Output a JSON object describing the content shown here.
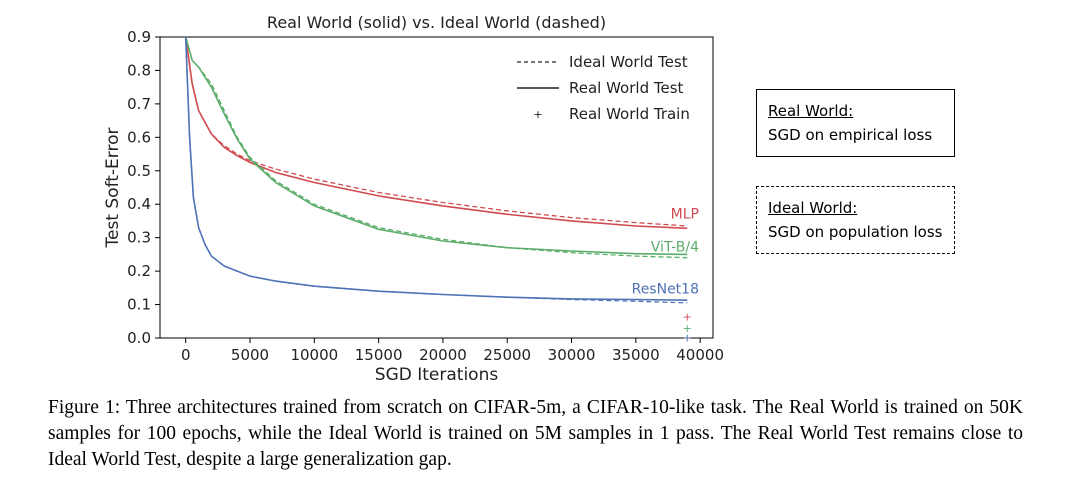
{
  "chart_data": {
    "type": "line",
    "title": "Real World (solid) vs. Ideal World (dashed)",
    "xlabel": "SGD Iterations",
    "ylabel": "Test Soft-Error",
    "xlim": [
      -2000,
      41000
    ],
    "ylim": [
      0.0,
      0.9
    ],
    "xticks": [
      0,
      5000,
      10000,
      15000,
      20000,
      25000,
      30000,
      35000,
      40000
    ],
    "yticks": [
      0.0,
      0.1,
      0.2,
      0.3,
      0.4,
      0.5,
      0.6,
      0.7,
      0.8,
      0.9
    ],
    "grid": false,
    "legend": {
      "placement": "top-right",
      "entries": [
        "Ideal World Test",
        "Real World Test",
        "Real World Train"
      ]
    },
    "series": [
      {
        "name": "MLP",
        "color": "#d04a4f",
        "ideal_test": {
          "x": [
            0,
            500,
            1000,
            2000,
            3000,
            4000,
            5000,
            7000,
            10000,
            15000,
            20000,
            25000,
            30000,
            35000,
            39000
          ],
          "y": [
            0.9,
            0.76,
            0.68,
            0.61,
            0.575,
            0.55,
            0.53,
            0.505,
            0.475,
            0.435,
            0.405,
            0.38,
            0.36,
            0.345,
            0.335
          ]
        },
        "real_test": {
          "x": [
            0,
            500,
            1000,
            2000,
            3000,
            4000,
            5000,
            7000,
            10000,
            15000,
            20000,
            25000,
            30000,
            35000,
            39000
          ],
          "y": [
            0.9,
            0.76,
            0.68,
            0.61,
            0.57,
            0.545,
            0.525,
            0.495,
            0.465,
            0.425,
            0.395,
            0.37,
            0.35,
            0.335,
            0.328
          ]
        },
        "real_train_final": {
          "x": 39000,
          "y": 0.065
        }
      },
      {
        "name": "ViT-B/4",
        "color": "#5cad6b",
        "ideal_test": {
          "x": [
            0,
            500,
            1000,
            2000,
            3000,
            4000,
            5000,
            7000,
            10000,
            15000,
            20000,
            25000,
            30000,
            35000,
            39000
          ],
          "y": [
            0.9,
            0.83,
            0.81,
            0.76,
            0.68,
            0.6,
            0.54,
            0.47,
            0.4,
            0.33,
            0.295,
            0.27,
            0.255,
            0.245,
            0.24
          ]
        },
        "real_test": {
          "x": [
            0,
            500,
            1000,
            2000,
            3000,
            4000,
            5000,
            7000,
            10000,
            15000,
            20000,
            25000,
            30000,
            35000,
            39000
          ],
          "y": [
            0.9,
            0.83,
            0.81,
            0.75,
            0.67,
            0.595,
            0.535,
            0.465,
            0.395,
            0.325,
            0.29,
            0.27,
            0.26,
            0.252,
            0.25
          ]
        },
        "real_train_final": {
          "x": 39000,
          "y": 0.03
        }
      },
      {
        "name": "ResNet18",
        "color": "#4f73b7",
        "ideal_test": {
          "x": [
            0,
            300,
            600,
            1000,
            1500,
            2000,
            3000,
            4000,
            5000,
            7000,
            10000,
            15000,
            20000,
            25000,
            30000,
            35000,
            39000
          ],
          "y": [
            0.9,
            0.6,
            0.42,
            0.33,
            0.28,
            0.245,
            0.215,
            0.2,
            0.185,
            0.17,
            0.155,
            0.14,
            0.13,
            0.122,
            0.115,
            0.11,
            0.105
          ]
        },
        "real_test": {
          "x": [
            0,
            300,
            600,
            1000,
            1500,
            2000,
            3000,
            4000,
            5000,
            7000,
            10000,
            15000,
            20000,
            25000,
            30000,
            35000,
            39000
          ],
          "y": [
            0.9,
            0.6,
            0.42,
            0.33,
            0.28,
            0.245,
            0.215,
            0.2,
            0.185,
            0.17,
            0.155,
            0.14,
            0.13,
            0.122,
            0.117,
            0.115,
            0.113
          ]
        },
        "real_train_final": {
          "x": 39000,
          "y": 0.002
        }
      }
    ]
  },
  "side_boxes": {
    "real": {
      "heading": "Real World:",
      "text": "SGD on empirical loss"
    },
    "ideal": {
      "heading": "Ideal World:",
      "text": "SGD on population loss"
    }
  },
  "caption": "Figure 1: Three architectures trained from scratch on CIFAR-5m, a CIFAR-10-like task. The Real World is trained on 50K samples for 100 epochs, while the Ideal World is trained on 5M samples in 1 pass. The Real World Test remains close to Ideal World Test, despite a large generalization gap."
}
